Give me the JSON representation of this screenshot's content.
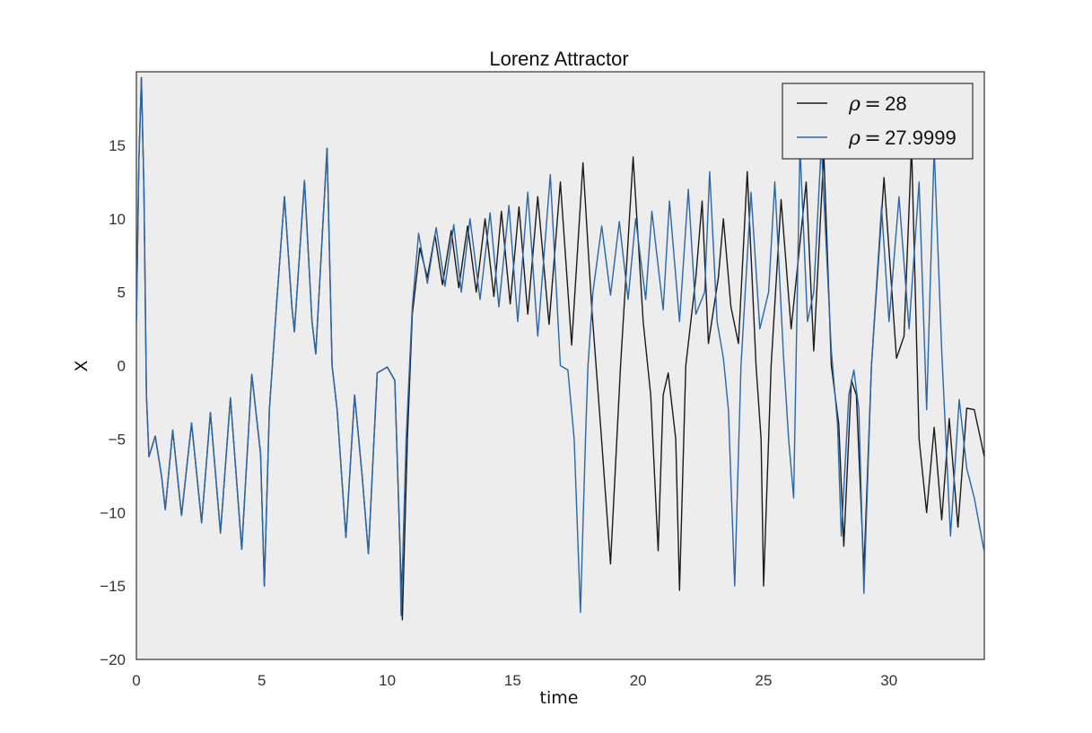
{
  "chart_data": {
    "type": "line",
    "title": "Lorenz Attractor",
    "xlabel": "time",
    "ylabel": "X",
    "xlim": [
      0,
      33.8
    ],
    "ylim": [
      -20,
      20
    ],
    "xticks": [
      0,
      5,
      10,
      15,
      20,
      25,
      30
    ],
    "yticks": [
      -20,
      -15,
      -10,
      -5,
      0,
      5,
      10,
      15
    ],
    "grid": false,
    "legend_position": "top-right",
    "series": [
      {
        "name": "28",
        "legend_symbol": "ρ",
        "legend_eq": "=",
        "color": "#1a1a1a",
        "points": [
          [
            0.0,
            3.0
          ],
          [
            0.1,
            14.0
          ],
          [
            0.2,
            19.6
          ],
          [
            0.3,
            12.0
          ],
          [
            0.4,
            -2.0
          ],
          [
            0.5,
            -6.2
          ],
          [
            0.75,
            -4.8
          ],
          [
            1.0,
            -7.5
          ],
          [
            1.15,
            -9.8
          ],
          [
            1.45,
            -4.4
          ],
          [
            1.8,
            -10.2
          ],
          [
            2.2,
            -3.9
          ],
          [
            2.6,
            -10.7
          ],
          [
            2.95,
            -3.2
          ],
          [
            3.35,
            -11.4
          ],
          [
            3.75,
            -2.2
          ],
          [
            4.2,
            -12.5
          ],
          [
            4.6,
            -0.6
          ],
          [
            4.95,
            -6.0
          ],
          [
            5.1,
            -15.0
          ],
          [
            5.3,
            -3.0
          ],
          [
            5.6,
            4.5
          ],
          [
            5.9,
            11.5
          ],
          [
            6.2,
            4.0
          ],
          [
            6.3,
            2.3
          ],
          [
            6.7,
            12.6
          ],
          [
            7.0,
            3.0
          ],
          [
            7.15,
            0.8
          ],
          [
            7.6,
            14.8
          ],
          [
            7.8,
            0.0
          ],
          [
            8.0,
            -3.0
          ],
          [
            8.35,
            -11.7
          ],
          [
            8.7,
            -2.0
          ],
          [
            9.0,
            -7.5
          ],
          [
            9.25,
            -12.8
          ],
          [
            9.6,
            -0.5
          ],
          [
            10.0,
            -0.1
          ],
          [
            10.3,
            -1.0
          ],
          [
            10.5,
            -12.0
          ],
          [
            10.6,
            -17.3
          ],
          [
            10.8,
            -5.0
          ],
          [
            11.0,
            3.5
          ],
          [
            11.3,
            8.0
          ],
          [
            11.6,
            6.0
          ],
          [
            11.9,
            8.9
          ],
          [
            12.2,
            5.5
          ],
          [
            12.55,
            9.2
          ],
          [
            12.85,
            5.3
          ],
          [
            13.2,
            9.5
          ],
          [
            13.55,
            5.0
          ],
          [
            13.9,
            10.0
          ],
          [
            14.25,
            4.7
          ],
          [
            14.55,
            10.5
          ],
          [
            14.9,
            4.2
          ],
          [
            15.25,
            10.8
          ],
          [
            15.6,
            3.5
          ],
          [
            16.0,
            11.5
          ],
          [
            16.45,
            2.8
          ],
          [
            16.9,
            12.5
          ],
          [
            17.35,
            1.4
          ],
          [
            17.8,
            13.8
          ],
          [
            18.15,
            4.0
          ],
          [
            18.5,
            -4.0
          ],
          [
            18.9,
            -13.5
          ],
          [
            19.3,
            0.0
          ],
          [
            19.8,
            14.2
          ],
          [
            20.2,
            3.0
          ],
          [
            20.5,
            -2.0
          ],
          [
            20.8,
            -12.6
          ],
          [
            21.0,
            -2.0
          ],
          [
            21.2,
            -0.5
          ],
          [
            21.5,
            -5.0
          ],
          [
            21.65,
            -15.3
          ],
          [
            21.9,
            0.0
          ],
          [
            22.3,
            6.0
          ],
          [
            22.55,
            11.2
          ],
          [
            22.8,
            1.5
          ],
          [
            23.2,
            6.0
          ],
          [
            23.4,
            10.0
          ],
          [
            23.7,
            4.0
          ],
          [
            24.0,
            1.5
          ],
          [
            24.35,
            13.2
          ],
          [
            24.7,
            0.0
          ],
          [
            24.9,
            -5.0
          ],
          [
            25.0,
            -15.0
          ],
          [
            25.3,
            0.0
          ],
          [
            25.7,
            11.3
          ],
          [
            26.1,
            2.5
          ],
          [
            26.7,
            12.5
          ],
          [
            27.0,
            1.0
          ],
          [
            27.4,
            14.5
          ],
          [
            27.7,
            0.0
          ],
          [
            28.0,
            -4.0
          ],
          [
            28.2,
            -12.3
          ],
          [
            28.5,
            -1.0
          ],
          [
            28.7,
            -2.0
          ],
          [
            29.0,
            -14.0
          ],
          [
            29.3,
            0.0
          ],
          [
            29.8,
            12.8
          ],
          [
            30.3,
            0.5
          ],
          [
            30.6,
            2.0
          ],
          [
            30.9,
            15.0
          ],
          [
            31.2,
            -5.0
          ],
          [
            31.5,
            -10.0
          ],
          [
            31.8,
            -4.2
          ],
          [
            32.1,
            -10.5
          ],
          [
            32.4,
            -3.6
          ],
          [
            32.75,
            -11.0
          ],
          [
            33.1,
            -2.9
          ],
          [
            33.4,
            -3.0
          ],
          [
            33.8,
            -6.2
          ]
        ]
      },
      {
        "name": "27.9999",
        "legend_symbol": "ρ",
        "legend_eq": "=",
        "color": "#2b66a6",
        "points": [
          [
            0.0,
            3.0
          ],
          [
            0.1,
            14.0
          ],
          [
            0.2,
            19.6
          ],
          [
            0.3,
            12.0
          ],
          [
            0.4,
            -2.0
          ],
          [
            0.5,
            -6.2
          ],
          [
            0.75,
            -4.8
          ],
          [
            1.0,
            -7.5
          ],
          [
            1.15,
            -9.8
          ],
          [
            1.45,
            -4.4
          ],
          [
            1.8,
            -10.2
          ],
          [
            2.2,
            -3.9
          ],
          [
            2.6,
            -10.7
          ],
          [
            2.95,
            -3.2
          ],
          [
            3.35,
            -11.4
          ],
          [
            3.75,
            -2.2
          ],
          [
            4.2,
            -12.5
          ],
          [
            4.6,
            -0.6
          ],
          [
            4.95,
            -6.0
          ],
          [
            5.1,
            -15.0
          ],
          [
            5.3,
            -3.0
          ],
          [
            5.6,
            4.5
          ],
          [
            5.9,
            11.5
          ],
          [
            6.2,
            4.0
          ],
          [
            6.3,
            2.3
          ],
          [
            6.7,
            12.6
          ],
          [
            7.0,
            3.0
          ],
          [
            7.15,
            0.8
          ],
          [
            7.6,
            14.8
          ],
          [
            7.8,
            0.0
          ],
          [
            8.0,
            -3.0
          ],
          [
            8.35,
            -11.7
          ],
          [
            8.7,
            -2.0
          ],
          [
            9.0,
            -7.5
          ],
          [
            9.25,
            -12.8
          ],
          [
            9.6,
            -0.5
          ],
          [
            10.0,
            -0.1
          ],
          [
            10.3,
            -1.0
          ],
          [
            10.5,
            -12.0
          ],
          [
            10.55,
            -17.0
          ],
          [
            10.75,
            -5.0
          ],
          [
            11.0,
            4.0
          ],
          [
            11.25,
            9.0
          ],
          [
            11.6,
            5.6
          ],
          [
            11.95,
            9.4
          ],
          [
            12.3,
            5.4
          ],
          [
            12.65,
            9.6
          ],
          [
            12.95,
            5.0
          ],
          [
            13.3,
            10.0
          ],
          [
            13.7,
            4.5
          ],
          [
            14.1,
            10.4
          ],
          [
            14.45,
            4.0
          ],
          [
            14.85,
            10.9
          ],
          [
            15.2,
            3.0
          ],
          [
            15.6,
            11.8
          ],
          [
            16.0,
            2.0
          ],
          [
            16.5,
            13.0
          ],
          [
            16.9,
            0.0
          ],
          [
            17.2,
            -0.3
          ],
          [
            17.45,
            -5.0
          ],
          [
            17.7,
            -16.8
          ],
          [
            17.9,
            -5.0
          ],
          [
            18.0,
            0.0
          ],
          [
            18.2,
            5.0
          ],
          [
            18.55,
            9.5
          ],
          [
            18.9,
            4.8
          ],
          [
            19.25,
            9.8
          ],
          [
            19.6,
            4.5
          ],
          [
            19.9,
            10.0
          ],
          [
            20.3,
            4.5
          ],
          [
            20.55,
            10.5
          ],
          [
            21.0,
            3.8
          ],
          [
            21.25,
            11.2
          ],
          [
            21.65,
            3.0
          ],
          [
            22.0,
            12.0
          ],
          [
            22.3,
            3.5
          ],
          [
            22.65,
            5.0
          ],
          [
            22.85,
            13.2
          ],
          [
            23.15,
            3.0
          ],
          [
            23.4,
            0.5
          ],
          [
            23.6,
            -3.0
          ],
          [
            23.85,
            -15.0
          ],
          [
            24.1,
            0.0
          ],
          [
            24.5,
            11.8
          ],
          [
            24.85,
            2.5
          ],
          [
            25.2,
            5.0
          ],
          [
            25.45,
            12.5
          ],
          [
            25.8,
            0.5
          ],
          [
            26.0,
            -5.0
          ],
          [
            26.2,
            -9.0
          ],
          [
            26.45,
            15.0
          ],
          [
            26.75,
            3.0
          ],
          [
            27.0,
            5.0
          ],
          [
            27.3,
            15.0
          ],
          [
            27.7,
            1.0
          ],
          [
            27.95,
            -4.0
          ],
          [
            28.1,
            -11.6
          ],
          [
            28.4,
            -2.0
          ],
          [
            28.6,
            -0.3
          ],
          [
            28.8,
            -3.0
          ],
          [
            29.0,
            -15.5
          ],
          [
            29.3,
            0.0
          ],
          [
            29.7,
            10.8
          ],
          [
            30.0,
            3.0
          ],
          [
            30.4,
            11.5
          ],
          [
            30.8,
            2.5
          ],
          [
            31.2,
            12.5
          ],
          [
            31.5,
            -3.0
          ],
          [
            31.8,
            14.8
          ],
          [
            32.1,
            1.0
          ],
          [
            32.45,
            -11.6
          ],
          [
            32.8,
            -2.3
          ],
          [
            33.1,
            -7.0
          ],
          [
            33.4,
            -9.0
          ],
          [
            33.8,
            -12.7
          ]
        ]
      }
    ]
  }
}
